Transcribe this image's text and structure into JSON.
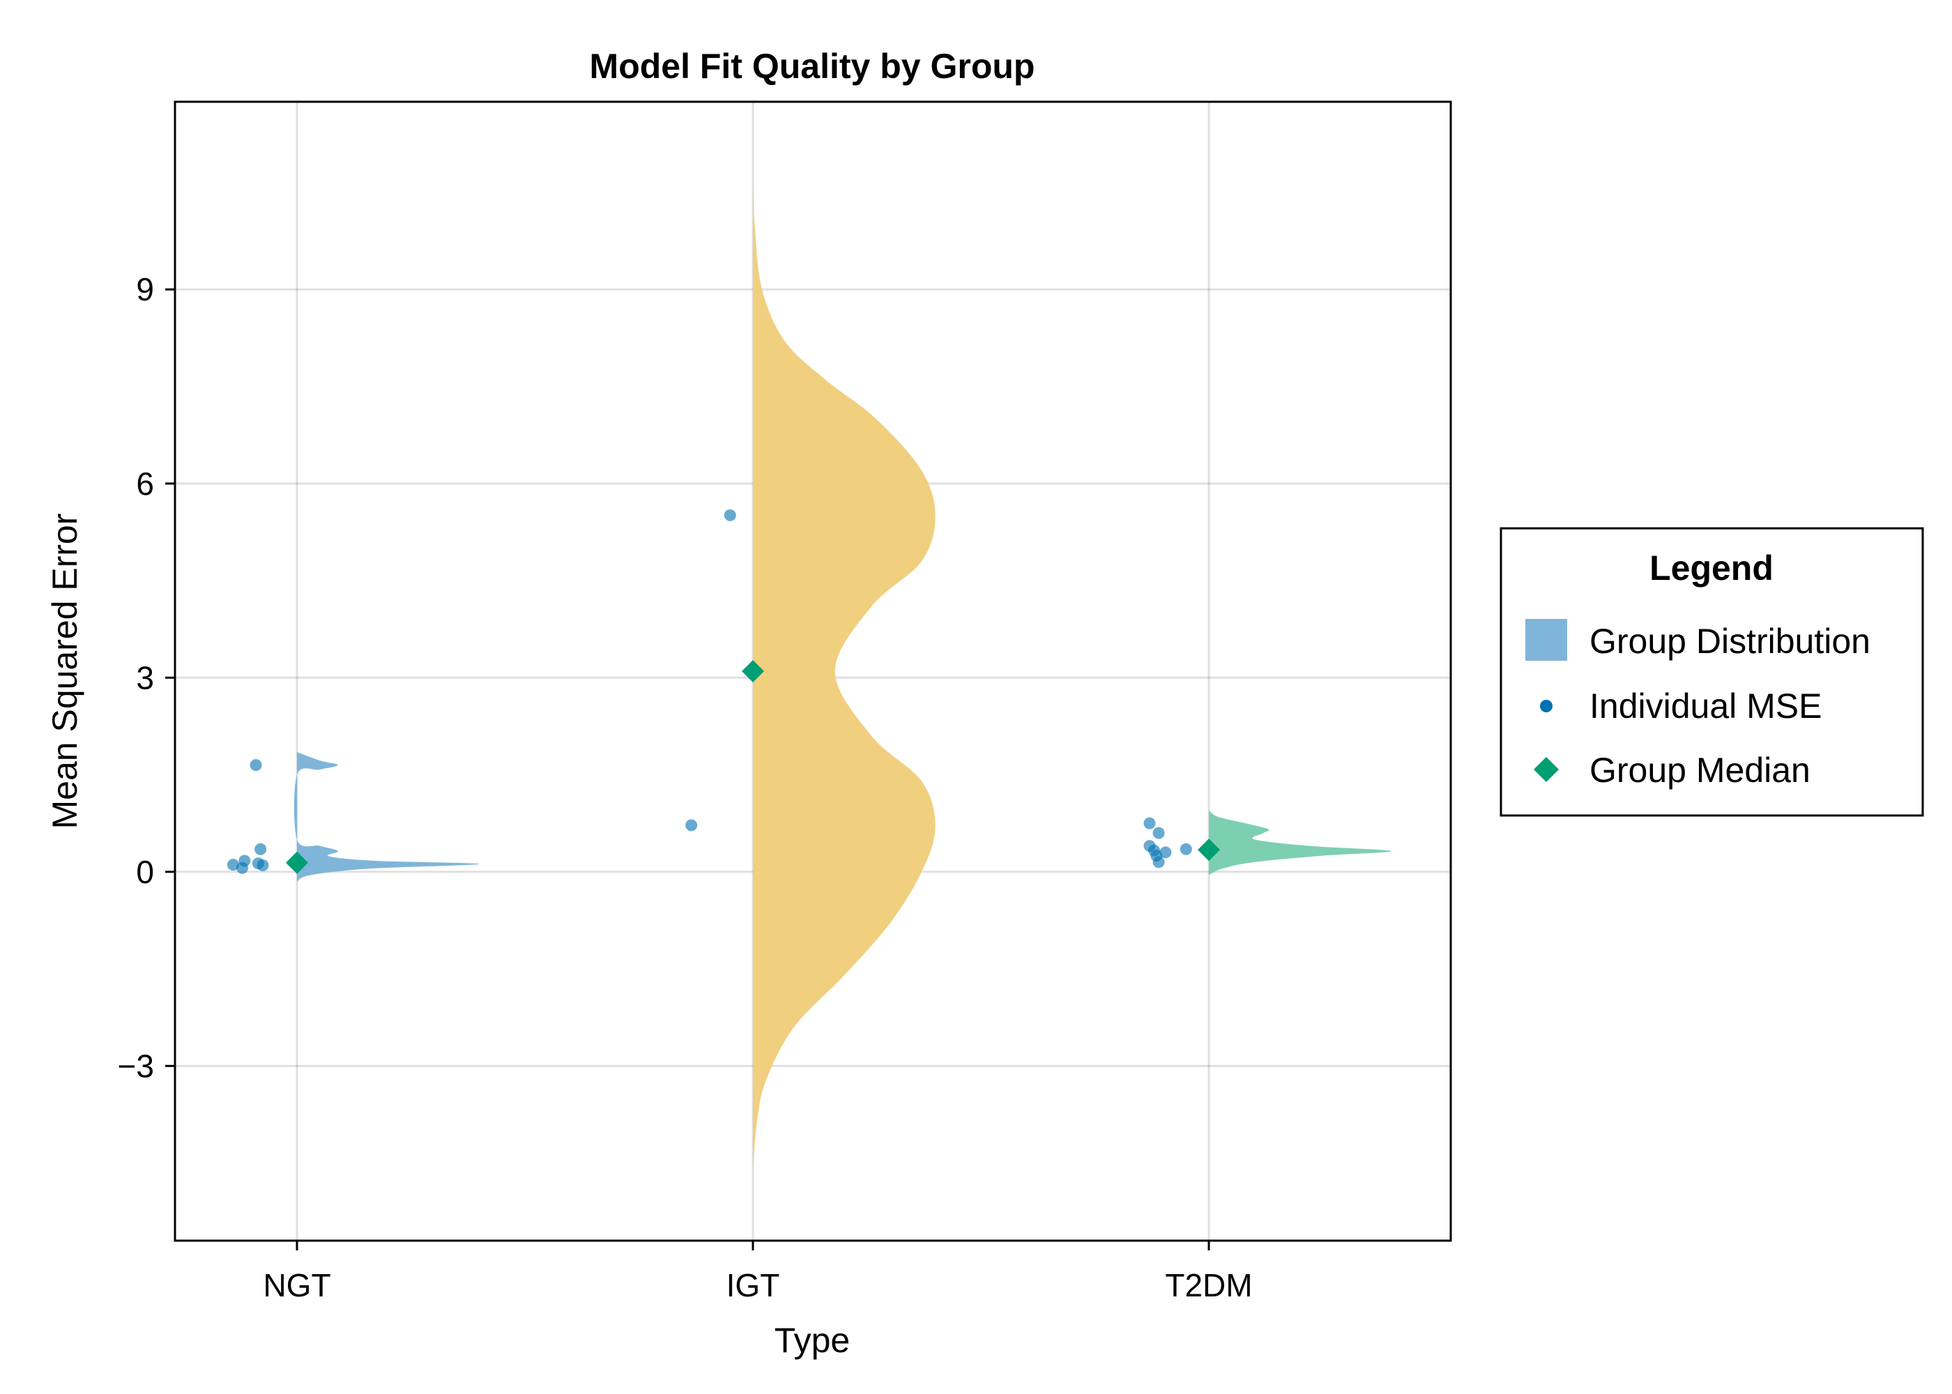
{
  "chart_data": {
    "type": "violin",
    "title": "Model Fit Quality by Group",
    "xlabel": "Type",
    "ylabel": "Mean Squared Error",
    "categories": [
      "NGT",
      "IGT",
      "T2DM"
    ],
    "yticks": [
      -3,
      0,
      3,
      6,
      9
    ],
    "ytick_labels": [
      "−3",
      "0",
      "3",
      "6",
      "9"
    ],
    "ylim": [
      -5.7,
      11.9
    ],
    "grid": true,
    "legend": {
      "title": "Legend",
      "placement": "right",
      "entries": [
        {
          "label": "Group Distribution",
          "kind": "patch",
          "color": "#7FB5D9"
        },
        {
          "label": "Individual MSE",
          "kind": "dot",
          "color": "#0072B2"
        },
        {
          "label": "Group Median",
          "kind": "diamond",
          "color": "#009E73"
        }
      ]
    },
    "groups": [
      {
        "name": "NGT",
        "color": "#7FB5D9",
        "median": 0.14,
        "density_range": [
          -0.15,
          1.85
        ],
        "density": [
          {
            "y": -0.15,
            "w": 0.0
          },
          {
            "y": -0.05,
            "w": 0.03
          },
          {
            "y": 0.05,
            "w": 0.16
          },
          {
            "y": 0.12,
            "w": 0.4
          },
          {
            "y": 0.17,
            "w": 0.17
          },
          {
            "y": 0.24,
            "w": 0.07
          },
          {
            "y": 0.32,
            "w": 0.09
          },
          {
            "y": 0.4,
            "w": 0.05
          },
          {
            "y": 0.5,
            "w": 0.0
          },
          {
            "y": 1.5,
            "w": 0.0
          },
          {
            "y": 1.58,
            "w": 0.05
          },
          {
            "y": 1.65,
            "w": 0.09
          },
          {
            "y": 1.72,
            "w": 0.05
          },
          {
            "y": 1.85,
            "w": 0.0
          }
        ],
        "points": [
          {
            "x_offset": -0.14,
            "y": 0.11
          },
          {
            "x_offset": -0.12,
            "y": 0.06
          },
          {
            "x_offset": -0.115,
            "y": 0.17
          },
          {
            "x_offset": -0.09,
            "y": 1.65
          },
          {
            "x_offset": -0.08,
            "y": 0.35
          },
          {
            "x_offset": -0.085,
            "y": 0.13
          },
          {
            "x_offset": -0.075,
            "y": 0.1
          }
        ]
      },
      {
        "name": "IGT",
        "color": "#F0CF7F",
        "median": 3.1,
        "density_range": [
          -4.6,
          10.8
        ],
        "density": [
          {
            "y": -4.6,
            "w": 0.0
          },
          {
            "y": -3.8,
            "w": 0.01
          },
          {
            "y": -3.2,
            "w": 0.03
          },
          {
            "y": -2.4,
            "w": 0.09
          },
          {
            "y": -1.6,
            "w": 0.2
          },
          {
            "y": -0.8,
            "w": 0.3
          },
          {
            "y": 0.0,
            "w": 0.37
          },
          {
            "y": 0.7,
            "w": 0.4
          },
          {
            "y": 1.4,
            "w": 0.37
          },
          {
            "y": 2.1,
            "w": 0.26
          },
          {
            "y": 3.1,
            "w": 0.18
          },
          {
            "y": 4.1,
            "w": 0.26
          },
          {
            "y": 4.8,
            "w": 0.37
          },
          {
            "y": 5.5,
            "w": 0.4
          },
          {
            "y": 6.2,
            "w": 0.37
          },
          {
            "y": 7.0,
            "w": 0.27
          },
          {
            "y": 7.6,
            "w": 0.16
          },
          {
            "y": 8.2,
            "w": 0.07
          },
          {
            "y": 9.0,
            "w": 0.02
          },
          {
            "y": 10.0,
            "w": 0.004
          },
          {
            "y": 10.8,
            "w": 0.0
          }
        ],
        "points": [
          {
            "x_offset": -0.05,
            "y": 5.51
          },
          {
            "x_offset": -0.135,
            "y": 0.72
          }
        ]
      },
      {
        "name": "T2DM",
        "color": "#7DCFB2",
        "median": 0.34,
        "density_range": [
          -0.05,
          0.95
        ],
        "density": [
          {
            "y": -0.05,
            "w": 0.0
          },
          {
            "y": 0.05,
            "w": 0.03
          },
          {
            "y": 0.15,
            "w": 0.1
          },
          {
            "y": 0.25,
            "w": 0.25
          },
          {
            "y": 0.32,
            "w": 0.4
          },
          {
            "y": 0.4,
            "w": 0.22
          },
          {
            "y": 0.5,
            "w": 0.1
          },
          {
            "y": 0.6,
            "w": 0.12
          },
          {
            "y": 0.66,
            "w": 0.13
          },
          {
            "y": 0.75,
            "w": 0.08
          },
          {
            "y": 0.85,
            "w": 0.02
          },
          {
            "y": 0.95,
            "w": 0.0
          }
        ],
        "points": [
          {
            "x_offset": -0.13,
            "y": 0.75
          },
          {
            "x_offset": -0.11,
            "y": 0.6
          },
          {
            "x_offset": -0.13,
            "y": 0.4
          },
          {
            "x_offset": -0.12,
            "y": 0.33
          },
          {
            "x_offset": -0.115,
            "y": 0.25
          },
          {
            "x_offset": -0.095,
            "y": 0.3
          },
          {
            "x_offset": -0.05,
            "y": 0.35
          },
          {
            "x_offset": -0.11,
            "y": 0.15
          }
        ]
      }
    ]
  }
}
